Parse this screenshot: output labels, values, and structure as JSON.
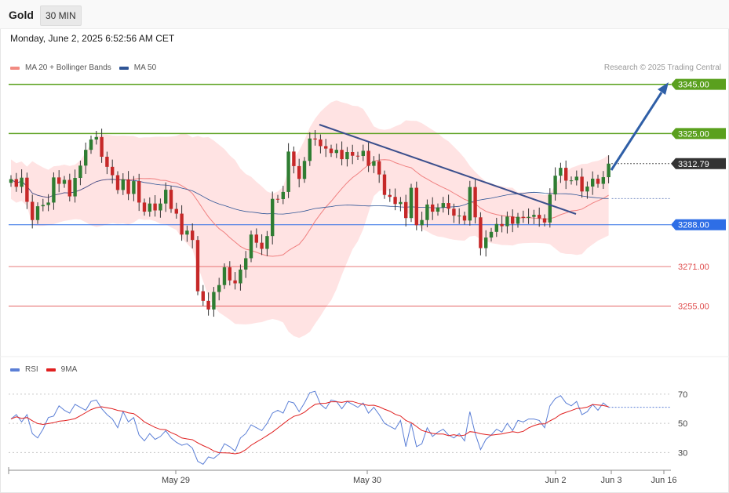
{
  "header": {
    "instrument": "Gold",
    "timeframe": "30 MIN"
  },
  "datetime": "Monday, June 2, 2025 6:52:56 AM CET",
  "legend": {
    "price": [
      {
        "label": "MA 20 + Bollinger Bands",
        "color": "#f28b82"
      },
      {
        "label": "MA 50",
        "color": "#2f5596"
      }
    ],
    "rsi": [
      {
        "label": "RSI",
        "color": "#5b7fd6"
      },
      {
        "label": "9MA",
        "color": "#e02020"
      }
    ]
  },
  "credit": "Research © 2025 Trading Central",
  "colors": {
    "resistance": "#5aa01e",
    "current": "#333333",
    "support_blue": "#2e6ee6",
    "support_red": "#e05050",
    "candle_up": "#2f7d32",
    "candle_down": "#c62828",
    "trendline": "#3b4f8c",
    "arrow": "#2f5fa7",
    "bands": "#ffdede"
  },
  "chart_data": {
    "type": "candlestick",
    "instrument": "Gold",
    "timeframe": "30 MIN",
    "ylim": [
      3237,
      3349
    ],
    "x_ticks": [
      "May 29",
      "May 30",
      "Jun 2",
      "Jun 3",
      "Jun 16"
    ],
    "levels": [
      {
        "label": "3345.00",
        "value": 3345.0,
        "kind": "resistance"
      },
      {
        "label": "3325.00",
        "value": 3325.0,
        "kind": "resistance"
      },
      {
        "label": "3312.79",
        "value": 3312.79,
        "kind": "current"
      },
      {
        "label": "3288.00",
        "value": 3288.0,
        "kind": "support_blue"
      },
      {
        "label": "3271.00",
        "value": 3271.0,
        "kind": "support_red"
      },
      {
        "label": "3255.00",
        "value": 3255.0,
        "kind": "support_red"
      }
    ],
    "close": [
      3306.5,
      3303.4,
      3307.1,
      3297.3,
      3289.9,
      3295.5,
      3296.0,
      3297.0,
      3307.2,
      3304.6,
      3306.2,
      3299.5,
      3307.0,
      3312.0,
      3318.4,
      3322.6,
      3323.6,
      3315.6,
      3311.5,
      3308.1,
      3302.1,
      3306.4,
      3300.5,
      3305.7,
      3297.0,
      3293.3,
      3296.6,
      3293.8,
      3296.6,
      3302.2,
      3294.4,
      3292.5,
      3284.0,
      3285.6,
      3281.8,
      3261.0,
      3257.1,
      3253.6,
      3260.7,
      3263.5,
      3270.7,
      3265.4,
      3264.2,
      3269.8,
      3274.4,
      3284.0,
      3280.7,
      3278.2,
      3283.4,
      3298.5,
      3298.4,
      3301.3,
      3317.7,
      3311.8,
      3306.6,
      3313.9,
      3323.0,
      3322.6,
      3319.9,
      3318.9,
      3317.1,
      3318.4,
      3314.6,
      3317.5,
      3316.0,
      3315.9,
      3318.0,
      3311.9,
      3313.8,
      3308.4,
      3300.1,
      3299.3,
      3296.4,
      3297.2,
      3290.7,
      3303.0,
      3287.8,
      3289.9,
      3296.2,
      3293.3,
      3295.0,
      3296.8,
      3294.5,
      3291.7,
      3291.7,
      3289.7,
      3303.3,
      3291.0,
      3278.5,
      3282.8,
      3285.1,
      3288.3,
      3287.4,
      3291.3,
      3288.4,
      3291.2,
      3290.8,
      3291.2,
      3292.0,
      3290.6,
      3288.9,
      3300.3,
      3307.9,
      3311.1,
      3305.9,
      3306.0,
      3307.5,
      3301.5,
      3303.5,
      3306.7,
      3304.6,
      3307.3,
      3312.8
    ],
    "rsi": {
      "ylim": [
        20,
        78
      ],
      "ticks": [
        70,
        50,
        30
      ],
      "values": [
        53,
        56,
        51,
        56,
        43,
        40,
        46,
        54,
        55,
        62,
        59,
        57,
        63,
        61,
        59,
        65,
        66,
        60,
        56,
        53,
        47,
        58,
        51,
        54,
        42,
        38,
        43,
        39,
        41,
        45,
        40,
        37,
        35,
        36,
        33,
        24,
        22,
        27,
        26,
        29,
        36,
        34,
        31,
        40,
        43,
        49,
        47,
        45,
        50,
        57,
        59,
        57,
        65,
        64,
        58,
        64,
        71,
        72,
        63,
        60,
        66,
        65,
        60,
        65,
        63,
        61,
        64,
        57,
        61,
        56,
        50,
        48,
        46,
        52,
        34,
        50,
        34,
        36,
        47,
        41,
        44,
        46,
        42,
        40,
        43,
        38,
        58,
        43,
        32,
        39,
        42,
        46,
        44,
        50,
        45,
        52,
        51,
        53,
        53,
        52,
        47,
        62,
        67,
        69,
        64,
        62,
        65,
        56,
        58,
        63,
        59,
        64,
        61
      ]
    }
  }
}
